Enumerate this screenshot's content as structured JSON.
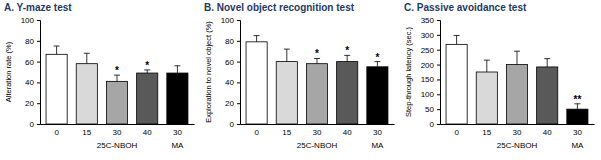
{
  "chart_data": [
    {
      "type": "bar",
      "title": "A. Y-maze test",
      "y_label": "Alteration rate (%)",
      "categories": [
        "0",
        "15",
        "30",
        "40",
        "30"
      ],
      "category_groups": [
        null,
        "25C-NBOH",
        "25C-NBOH",
        "25C-NBOH",
        "MA"
      ],
      "values": [
        67,
        58,
        41,
        49,
        49
      ],
      "errors": [
        8,
        10,
        6,
        3,
        7
      ],
      "annotations": [
        null,
        null,
        "*",
        "*",
        null
      ],
      "colors": [
        "#ffffff",
        "#d9d9d9",
        "#a6a6a6",
        "#595959",
        "#000000"
      ],
      "ylim": [
        0,
        100
      ],
      "yticks": [
        0,
        20,
        40,
        60,
        80,
        100
      ]
    },
    {
      "type": "bar",
      "title": "B. Novel object recognition test",
      "y_label": "Exploration to novel object (%)",
      "categories": [
        "0",
        "15",
        "30",
        "40",
        "30"
      ],
      "category_groups": [
        null,
        "25C-NBOH",
        "25C-NBOH",
        "25C-NBOH",
        "MA"
      ],
      "values": [
        79,
        60,
        58,
        60,
        55
      ],
      "errors": [
        6,
        12,
        5,
        6,
        5
      ],
      "annotations": [
        null,
        null,
        "*",
        "*",
        "*"
      ],
      "colors": [
        "#ffffff",
        "#d9d9d9",
        "#a6a6a6",
        "#595959",
        "#000000"
      ],
      "ylim": [
        0,
        100
      ],
      "yticks": [
        0,
        20,
        40,
        60,
        80,
        100
      ]
    },
    {
      "type": "bar",
      "title": "C. Passive avoidance test",
      "y_label": "Step-through latency (sec.)",
      "categories": [
        "0",
        "15",
        "30",
        "40",
        "30"
      ],
      "category_groups": [
        null,
        "25C-NBOH",
        "25C-NBOH",
        "25C-NBOH",
        "MA"
      ],
      "values": [
        268,
        175,
        200,
        192,
        50
      ],
      "errors": [
        30,
        40,
        45,
        28,
        18
      ],
      "annotations": [
        null,
        null,
        null,
        null,
        "**"
      ],
      "colors": [
        "#ffffff",
        "#d9d9d9",
        "#a6a6a6",
        "#595959",
        "#000000"
      ],
      "ylim": [
        0,
        350
      ],
      "yticks": [
        0,
        50,
        100,
        150,
        200,
        250,
        300,
        350
      ]
    }
  ]
}
